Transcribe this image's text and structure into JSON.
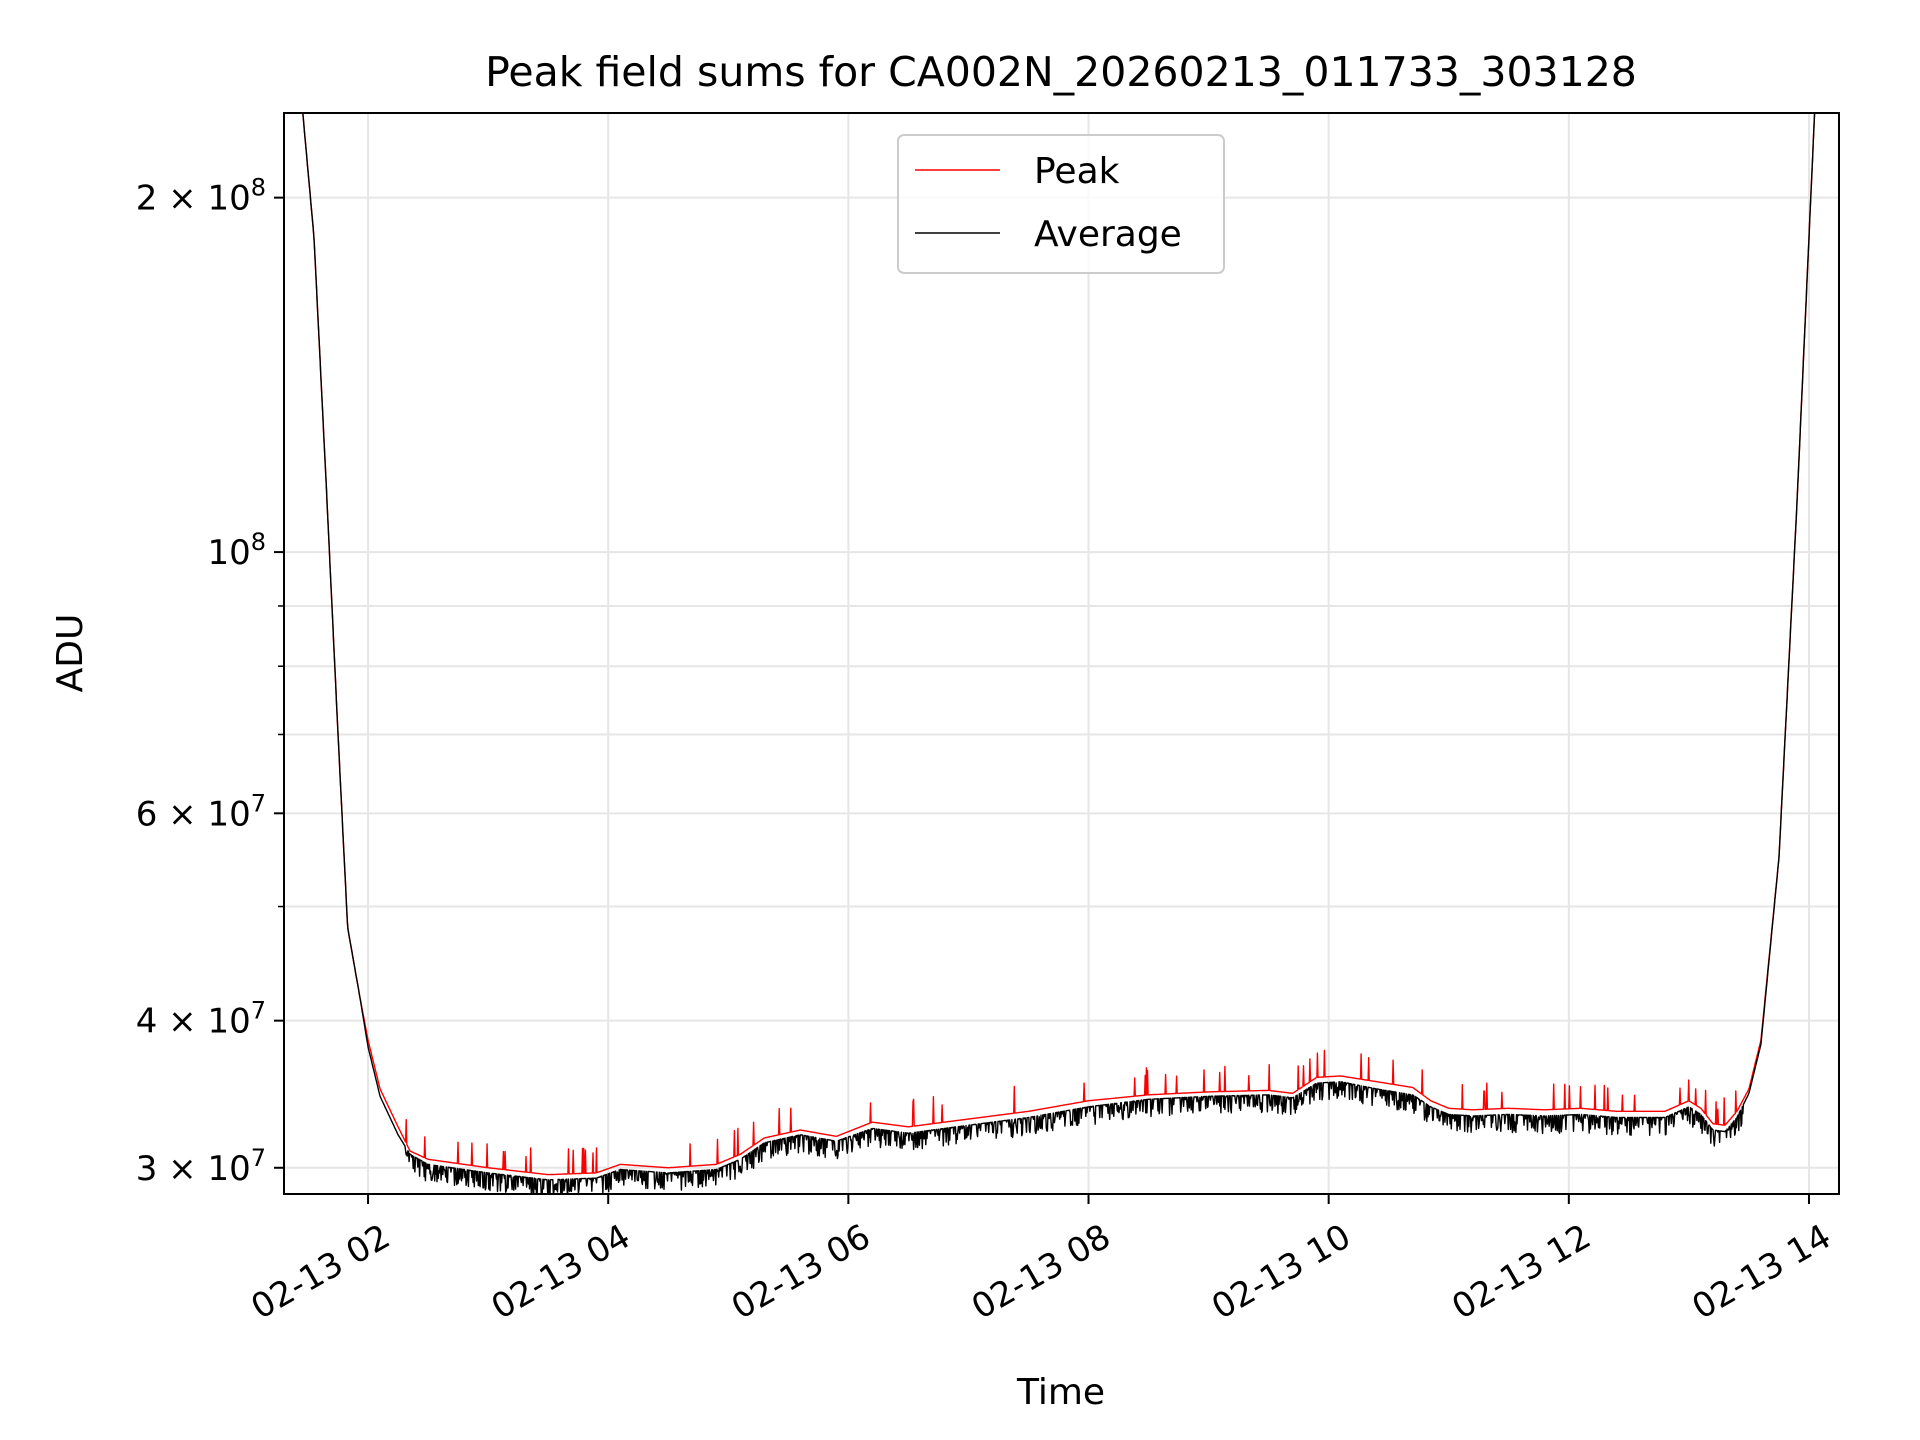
{
  "chart_data": {
    "type": "line",
    "title": "Peak field sums for CA002N_20260213_011733_303128",
    "xlabel": "Time",
    "ylabel": "ADU",
    "yscale": "log",
    "xlim_hours": [
      1.3,
      14.25
    ],
    "ylim": [
      28500000,
      236000000
    ],
    "grid": true,
    "legend_position": "upper center",
    "x_ticks": [
      {
        "hour": 2,
        "label": "02-13 02"
      },
      {
        "hour": 4,
        "label": "02-13 04"
      },
      {
        "hour": 6,
        "label": "02-13 06"
      },
      {
        "hour": 8,
        "label": "02-13 08"
      },
      {
        "hour": 10,
        "label": "02-13 10"
      },
      {
        "hour": 12,
        "label": "02-13 12"
      },
      {
        "hour": 14,
        "label": "02-13 14"
      }
    ],
    "y_ticks": [
      {
        "value": 30000000,
        "mantissa": "3",
        "exp": "7",
        "label": "3 × 10^7"
      },
      {
        "value": 40000000,
        "mantissa": "4",
        "exp": "7",
        "label": "4 × 10^7"
      },
      {
        "value": 60000000,
        "mantissa": "6",
        "exp": "7",
        "label": "6 × 10^7"
      },
      {
        "value": 100000000,
        "mantissa": "",
        "exp": "8",
        "label": "10^8"
      },
      {
        "value": 200000000,
        "mantissa": "2",
        "exp": "8",
        "label": "2 × 10^8"
      }
    ],
    "y_minor_ticks": [
      50000000,
      70000000,
      80000000,
      90000000
    ],
    "series": [
      {
        "name": "Peak",
        "color": "#ff0000",
        "points": [
          [
            1.45,
            240000000
          ],
          [
            1.55,
            185000000
          ],
          [
            1.65,
            115000000
          ],
          [
            1.75,
            70000000
          ],
          [
            1.83,
            48000000
          ],
          [
            1.93,
            42000000
          ],
          [
            2.0,
            38500000
          ],
          [
            2.1,
            35000000
          ],
          [
            2.25,
            32500000
          ],
          [
            2.35,
            31000000
          ],
          [
            2.5,
            30500000
          ],
          [
            3.0,
            30000000
          ],
          [
            3.5,
            29600000
          ],
          [
            3.9,
            29700000
          ],
          [
            4.1,
            30200000
          ],
          [
            4.5,
            30000000
          ],
          [
            4.9,
            30200000
          ],
          [
            5.1,
            30800000
          ],
          [
            5.3,
            31800000
          ],
          [
            5.6,
            32300000
          ],
          [
            5.9,
            31900000
          ],
          [
            6.2,
            32800000
          ],
          [
            6.5,
            32500000
          ],
          [
            7.0,
            33000000
          ],
          [
            7.5,
            33500000
          ],
          [
            8.0,
            34200000
          ],
          [
            8.5,
            34600000
          ],
          [
            9.0,
            34800000
          ],
          [
            9.5,
            34900000
          ],
          [
            9.7,
            34700000
          ],
          [
            9.9,
            35800000
          ],
          [
            10.1,
            35900000
          ],
          [
            10.4,
            35500000
          ],
          [
            10.7,
            35100000
          ],
          [
            10.85,
            34200000
          ],
          [
            11.0,
            33700000
          ],
          [
            11.2,
            33600000
          ],
          [
            11.5,
            33700000
          ],
          [
            11.8,
            33600000
          ],
          [
            12.1,
            33700000
          ],
          [
            12.4,
            33500000
          ],
          [
            12.8,
            33500000
          ],
          [
            13.0,
            34200000
          ],
          [
            13.1,
            33700000
          ],
          [
            13.2,
            32700000
          ],
          [
            13.3,
            32600000
          ],
          [
            13.4,
            33500000
          ],
          [
            13.5,
            35000000
          ],
          [
            13.6,
            38500000
          ],
          [
            13.75,
            55000000
          ],
          [
            13.9,
            110000000
          ],
          [
            14.05,
            240000000
          ]
        ]
      },
      {
        "name": "Average",
        "color": "#000000",
        "points": [
          [
            1.45,
            240000000
          ],
          [
            1.55,
            185000000
          ],
          [
            1.65,
            115000000
          ],
          [
            1.75,
            70000000
          ],
          [
            1.83,
            48000000
          ],
          [
            1.93,
            42000000
          ],
          [
            2.0,
            38000000
          ],
          [
            2.1,
            34500000
          ],
          [
            2.25,
            32000000
          ],
          [
            2.35,
            30800000
          ],
          [
            2.5,
            30200000
          ],
          [
            3.0,
            29700000
          ],
          [
            3.5,
            29300000
          ],
          [
            3.9,
            29400000
          ],
          [
            4.1,
            29900000
          ],
          [
            4.5,
            29700000
          ],
          [
            4.9,
            29900000
          ],
          [
            5.1,
            30500000
          ],
          [
            5.3,
            31500000
          ],
          [
            5.6,
            32000000
          ],
          [
            5.9,
            31600000
          ],
          [
            6.2,
            32400000
          ],
          [
            6.5,
            32100000
          ],
          [
            7.0,
            32600000
          ],
          [
            7.5,
            33100000
          ],
          [
            8.0,
            33800000
          ],
          [
            8.5,
            34300000
          ],
          [
            9.0,
            34500000
          ],
          [
            9.5,
            34600000
          ],
          [
            9.7,
            34400000
          ],
          [
            9.9,
            35400000
          ],
          [
            10.1,
            35500000
          ],
          [
            10.4,
            35000000
          ],
          [
            10.7,
            34600000
          ],
          [
            10.85,
            33800000
          ],
          [
            11.0,
            33300000
          ],
          [
            11.2,
            33200000
          ],
          [
            11.5,
            33300000
          ],
          [
            11.8,
            33200000
          ],
          [
            12.1,
            33300000
          ],
          [
            12.4,
            33100000
          ],
          [
            12.8,
            33100000
          ],
          [
            13.0,
            33800000
          ],
          [
            13.1,
            33300000
          ],
          [
            13.2,
            32300000
          ],
          [
            13.3,
            32200000
          ],
          [
            13.4,
            33100000
          ],
          [
            13.5,
            34700000
          ],
          [
            13.6,
            38200000
          ],
          [
            13.75,
            55000000
          ],
          [
            13.9,
            110000000
          ],
          [
            14.05,
            240000000
          ]
        ]
      }
    ]
  }
}
